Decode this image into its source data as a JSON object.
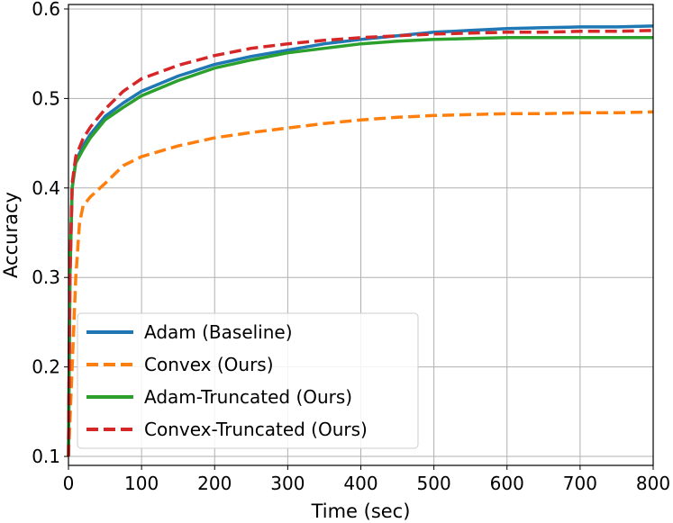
{
  "chart_data": {
    "type": "line",
    "xlabel": "Time (sec)",
    "ylabel": "Accuracy",
    "xlim": [
      0,
      800
    ],
    "ylim": [
      0.09,
      0.605
    ],
    "xticks": [
      0,
      100,
      200,
      300,
      400,
      500,
      600,
      700,
      800
    ],
    "yticks": [
      0.1,
      0.2,
      0.3,
      0.4,
      0.5,
      0.6
    ],
    "grid": true,
    "legend_position": "lower-left",
    "series": [
      {
        "name": "Adam (Baseline)",
        "color": "#1f77b4",
        "dash": "solid",
        "x": [
          0,
          2,
          5,
          10,
          20,
          30,
          50,
          75,
          100,
          150,
          200,
          250,
          300,
          350,
          400,
          450,
          500,
          550,
          600,
          650,
          700,
          750,
          800
        ],
        "y": [
          0.1,
          0.3,
          0.4,
          0.43,
          0.447,
          0.46,
          0.48,
          0.495,
          0.508,
          0.525,
          0.538,
          0.547,
          0.554,
          0.561,
          0.566,
          0.57,
          0.574,
          0.576,
          0.578,
          0.579,
          0.58,
          0.58,
          0.581
        ]
      },
      {
        "name": "Convex (Ours)",
        "color": "#ff7f0e",
        "dash": "dashed",
        "x": [
          0,
          5,
          10,
          15,
          20,
          30,
          50,
          75,
          100,
          150,
          200,
          250,
          300,
          350,
          400,
          450,
          500,
          550,
          600,
          650,
          700,
          750,
          800
        ],
        "y": [
          0.1,
          0.2,
          0.3,
          0.36,
          0.38,
          0.39,
          0.405,
          0.425,
          0.435,
          0.447,
          0.456,
          0.462,
          0.467,
          0.472,
          0.476,
          0.479,
          0.481,
          0.482,
          0.483,
          0.483,
          0.484,
          0.484,
          0.485
        ]
      },
      {
        "name": "Adam-Truncated (Ours)",
        "color": "#2ca02c",
        "dash": "solid",
        "x": [
          0,
          2,
          5,
          10,
          20,
          30,
          50,
          75,
          100,
          150,
          200,
          250,
          300,
          350,
          400,
          450,
          500,
          550,
          600,
          650,
          700,
          750,
          800
        ],
        "y": [
          0.1,
          0.3,
          0.4,
          0.428,
          0.443,
          0.456,
          0.476,
          0.49,
          0.503,
          0.52,
          0.534,
          0.543,
          0.551,
          0.556,
          0.561,
          0.564,
          0.566,
          0.567,
          0.568,
          0.568,
          0.568,
          0.568,
          0.568
        ]
      },
      {
        "name": "Convex-Truncated (Ours)",
        "color": "#d62728",
        "dash": "dashed",
        "x": [
          0,
          2,
          5,
          10,
          20,
          30,
          50,
          75,
          100,
          150,
          200,
          250,
          300,
          350,
          400,
          450,
          500,
          550,
          600,
          650,
          700,
          750,
          800
        ],
        "y": [
          0.1,
          0.3,
          0.405,
          0.435,
          0.455,
          0.468,
          0.488,
          0.508,
          0.522,
          0.537,
          0.548,
          0.556,
          0.561,
          0.565,
          0.568,
          0.57,
          0.572,
          0.573,
          0.574,
          0.574,
          0.575,
          0.575,
          0.576
        ]
      }
    ]
  }
}
